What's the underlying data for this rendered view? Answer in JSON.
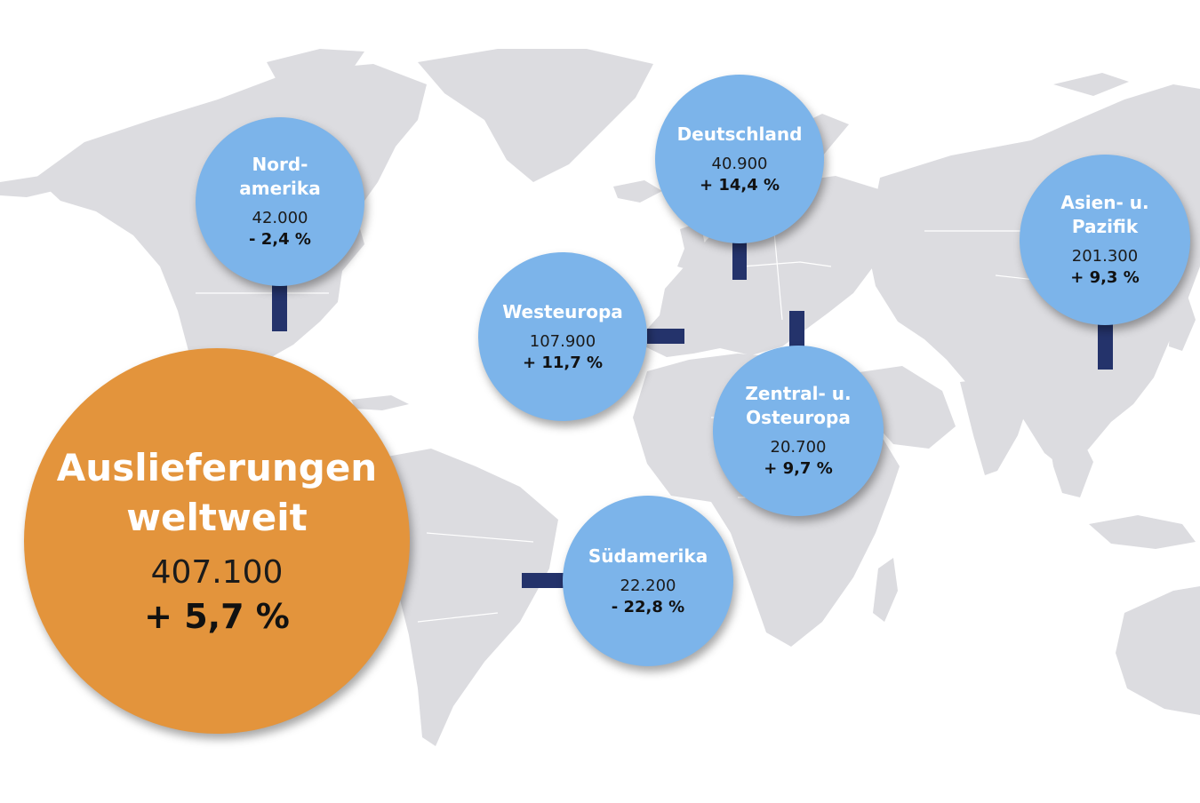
{
  "map": {
    "land_color": "#dcdce0",
    "connector_color": "#24336b"
  },
  "total": {
    "title_line1": "Auslieferungen",
    "title_line2": "weltweit",
    "value": "407.100",
    "change": "+ 5,7 %",
    "color": "#e3943c"
  },
  "regions": {
    "color": "#7cb4ea",
    "nordamerika": {
      "title_line1": "Nord-",
      "title_line2": "amerika",
      "value": "42.000",
      "change": "- 2,4 %"
    },
    "deutschland": {
      "title_line1": "Deutschland",
      "value": "40.900",
      "change": "+ 14,4 %"
    },
    "westeuropa": {
      "title_line1": "Westeuropa",
      "value": "107.900",
      "change": "+ 11,7 %"
    },
    "asien": {
      "title_line1": "Asien- u.",
      "title_line2": "Pazifik",
      "value": "201.300",
      "change": "+ 9,3 %"
    },
    "zentral": {
      "title_line1": "Zentral- u.",
      "title_line2": "Osteuropa",
      "value": "20.700",
      "change": "+ 9,7 %"
    },
    "suedamerika": {
      "title_line1": "Südamerika",
      "value": "22.200",
      "change": "- 22,8 %"
    }
  }
}
